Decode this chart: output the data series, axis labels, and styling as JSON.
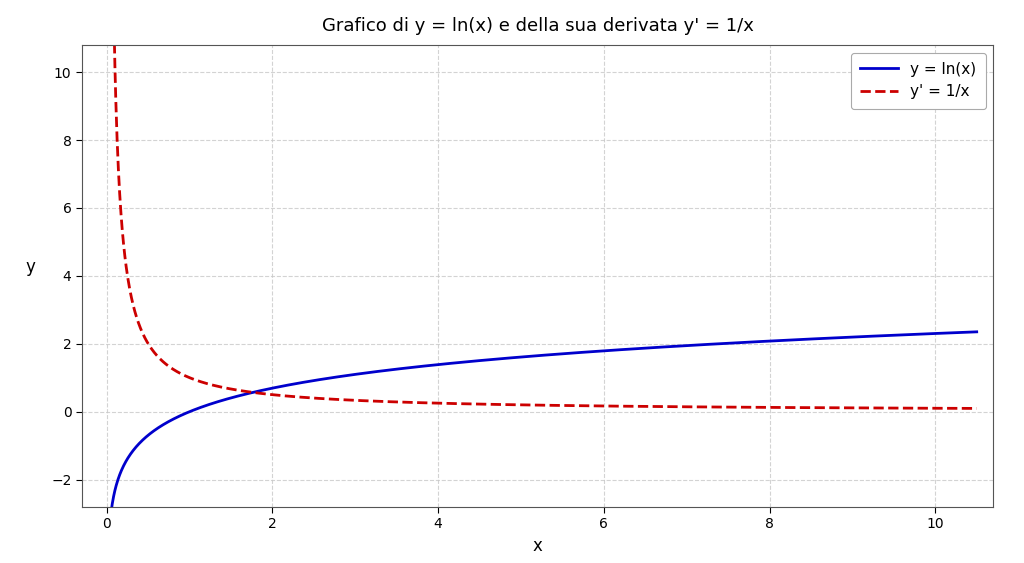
{
  "title": "Grafico di y = ln(x) e della sua derivata y' = 1/x",
  "xlabel": "x",
  "ylabel": "y",
  "xlim": [
    -0.3,
    10.7
  ],
  "ylim": [
    -2.8,
    10.8
  ],
  "x_start": 0.03,
  "x_end": 10.5,
  "n_points": 2000,
  "ln_color": "#0000cc",
  "deriv_color": "#cc0000",
  "ln_linewidth": 2.0,
  "deriv_linewidth": 2.0,
  "ln_linestyle": "solid",
  "deriv_linestyle": "dashed",
  "ln_label": "y = ln(x)",
  "deriv_label": "y' = 1/x",
  "background_color": "#ffffff",
  "plot_bg_color": "#ffffff",
  "grid_color": "#c8c8c8",
  "grid_linestyle": "dashed",
  "grid_alpha": 0.8,
  "title_fontsize": 13,
  "label_fontsize": 12,
  "tick_fontsize": 10,
  "legend_fontsize": 11,
  "xticks": [
    0,
    2,
    4,
    6,
    8,
    10
  ],
  "yticks": [
    -2,
    0,
    2,
    4,
    6,
    8,
    10
  ]
}
